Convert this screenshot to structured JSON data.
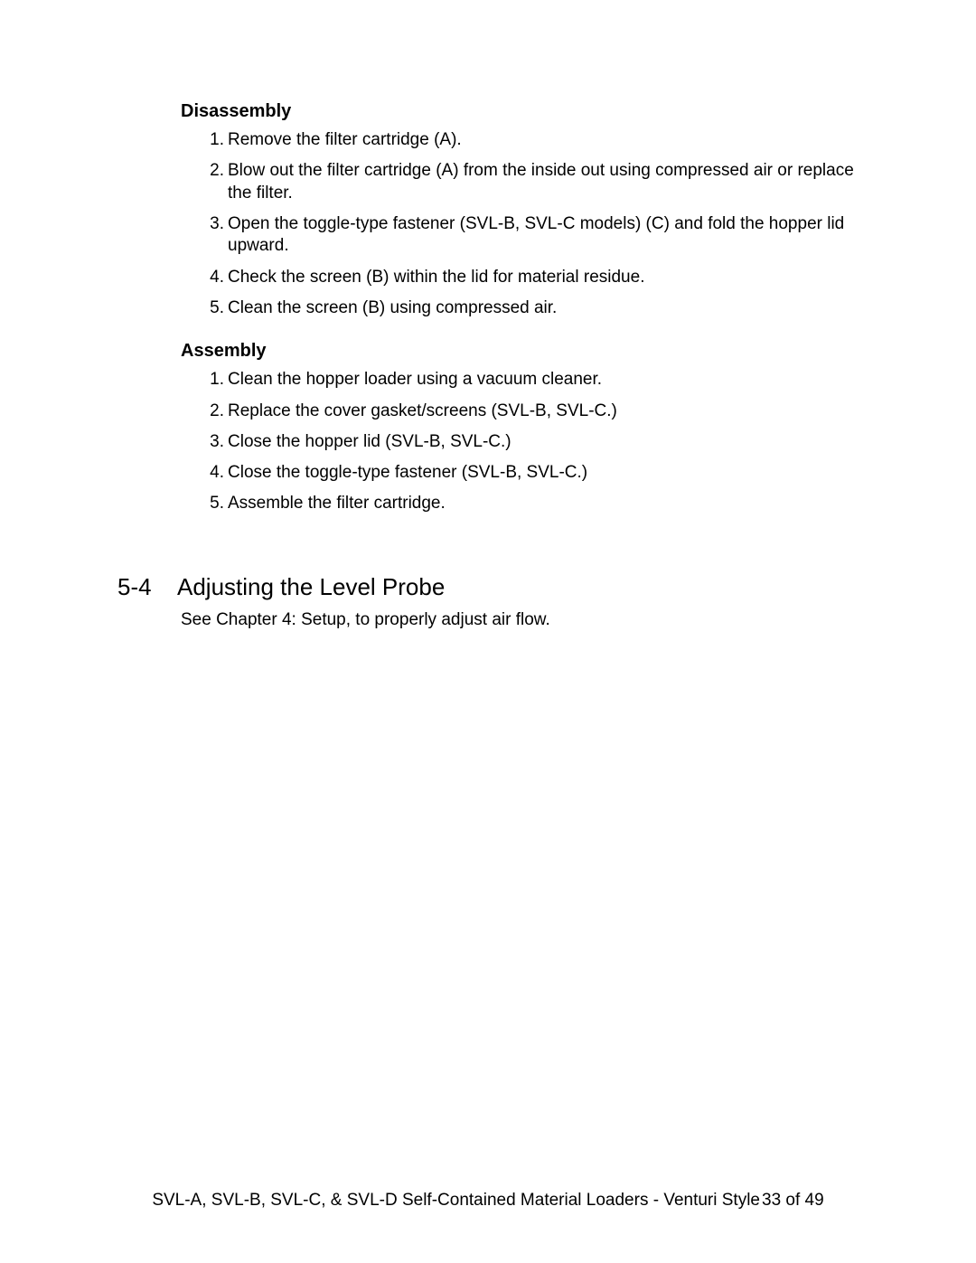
{
  "disassembly": {
    "heading": "Disassembly",
    "steps": [
      "Remove the filter cartridge (A).",
      "Blow out the filter cartridge (A) from the inside out using compressed air or replace the filter.",
      "Open the toggle-type fastener (SVL-B, SVL-C models) (C) and fold the hopper lid upward.",
      "Check the screen (B) within the lid for material residue.",
      "Clean the screen (B) using compressed air."
    ]
  },
  "assembly": {
    "heading": "Assembly",
    "steps": [
      "Clean the hopper loader using a vacuum cleaner.",
      "Replace the cover gasket/screens (SVL-B, SVL-C.)",
      "Close the hopper lid (SVL-B, SVL-C.)",
      "Close the toggle-type fastener (SVL-B, SVL-C.)",
      "Assemble the filter cartridge."
    ]
  },
  "section": {
    "number": "5-4",
    "title": "Adjusting the Level Probe",
    "body": "See Chapter 4: Setup, to properly adjust air flow."
  },
  "footer": {
    "doc_title": "SVL-A, SVL-B, SVL-C, & SVL-D Self-Contained Material Loaders - Venturi Style",
    "page_indicator": "33 of 49"
  }
}
